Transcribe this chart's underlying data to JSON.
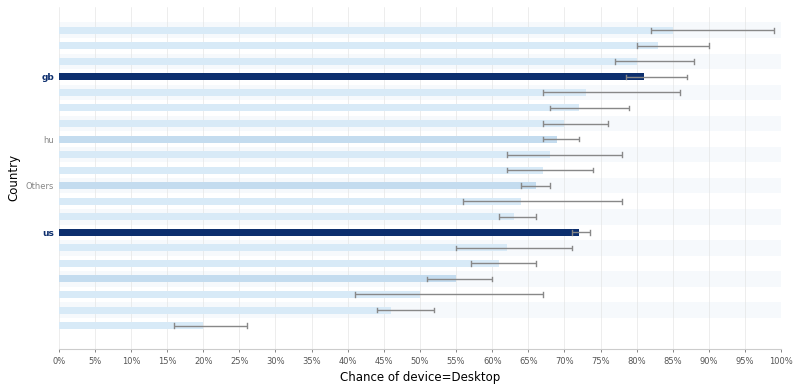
{
  "title": "",
  "xlabel": "Chance of device=Desktop",
  "ylabel": "Country",
  "xlim": [
    0,
    100
  ],
  "xticks": [
    0,
    5,
    10,
    15,
    20,
    25,
    30,
    35,
    40,
    45,
    50,
    55,
    60,
    65,
    70,
    75,
    80,
    85,
    90,
    95,
    100
  ],
  "background_color": "#ffffff",
  "bars": [
    {
      "label": "",
      "value": 85.0,
      "ci_lo": 82.0,
      "ci_hi": 99.0,
      "color": "#d8eaf7",
      "highlighted": false
    },
    {
      "label": "",
      "value": 83.0,
      "ci_lo": 80.0,
      "ci_hi": 90.0,
      "color": "#d8eaf7",
      "highlighted": false
    },
    {
      "label": "",
      "value": 80.0,
      "ci_lo": 77.0,
      "ci_hi": 88.0,
      "color": "#d8eaf7",
      "highlighted": false
    },
    {
      "label": "gb",
      "value": 81.0,
      "ci_lo": 78.5,
      "ci_hi": 87.0,
      "color": "#0d2f6e",
      "highlighted": true
    },
    {
      "label": "",
      "value": 73.0,
      "ci_lo": 67.0,
      "ci_hi": 86.0,
      "color": "#d8eaf7",
      "highlighted": false
    },
    {
      "label": "",
      "value": 72.0,
      "ci_lo": 68.0,
      "ci_hi": 79.0,
      "color": "#d8eaf7",
      "highlighted": false
    },
    {
      "label": "",
      "value": 70.0,
      "ci_lo": 67.0,
      "ci_hi": 76.0,
      "color": "#d8eaf7",
      "highlighted": false
    },
    {
      "label": "hu",
      "value": 69.0,
      "ci_lo": 67.0,
      "ci_hi": 72.0,
      "color": "#c4dcef",
      "highlighted": false
    },
    {
      "label": "",
      "value": 68.0,
      "ci_lo": 62.0,
      "ci_hi": 78.0,
      "color": "#d8eaf7",
      "highlighted": false
    },
    {
      "label": "",
      "value": 67.0,
      "ci_lo": 62.0,
      "ci_hi": 74.0,
      "color": "#d8eaf7",
      "highlighted": false
    },
    {
      "label": "Others",
      "value": 66.0,
      "ci_lo": 64.0,
      "ci_hi": 68.0,
      "color": "#c4dcef",
      "highlighted": false
    },
    {
      "label": "",
      "value": 64.0,
      "ci_lo": 56.0,
      "ci_hi": 78.0,
      "color": "#d8eaf7",
      "highlighted": false
    },
    {
      "label": "",
      "value": 63.0,
      "ci_lo": 61.0,
      "ci_hi": 66.0,
      "color": "#d8eaf7",
      "highlighted": false
    },
    {
      "label": "us",
      "value": 72.0,
      "ci_lo": 71.0,
      "ci_hi": 73.5,
      "color": "#0d2f6e",
      "highlighted": true
    },
    {
      "label": "",
      "value": 62.0,
      "ci_lo": 55.0,
      "ci_hi": 71.0,
      "color": "#d8eaf7",
      "highlighted": false
    },
    {
      "label": "",
      "value": 61.0,
      "ci_lo": 57.0,
      "ci_hi": 66.0,
      "color": "#d8eaf7",
      "highlighted": false
    },
    {
      "label": "",
      "value": 55.0,
      "ci_lo": 51.0,
      "ci_hi": 60.0,
      "color": "#c4dcef",
      "highlighted": false
    },
    {
      "label": "",
      "value": 50.0,
      "ci_lo": 41.0,
      "ci_hi": 67.0,
      "color": "#d8eaf7",
      "highlighted": false
    },
    {
      "label": "",
      "value": 46.0,
      "ci_lo": 44.0,
      "ci_hi": 52.0,
      "color": "#d8eaf7",
      "highlighted": false
    },
    {
      "label": "",
      "value": 20.0,
      "ci_lo": 16.0,
      "ci_hi": 26.0,
      "color": "#d8eaf7",
      "highlighted": false
    }
  ],
  "bar_height": 0.45,
  "highlighted_color": "#0d2f6e",
  "error_bar_color": "#888888",
  "error_bar_lw": 1.0,
  "label_fontsize": 6.5,
  "xlabel_fontsize": 8.5
}
